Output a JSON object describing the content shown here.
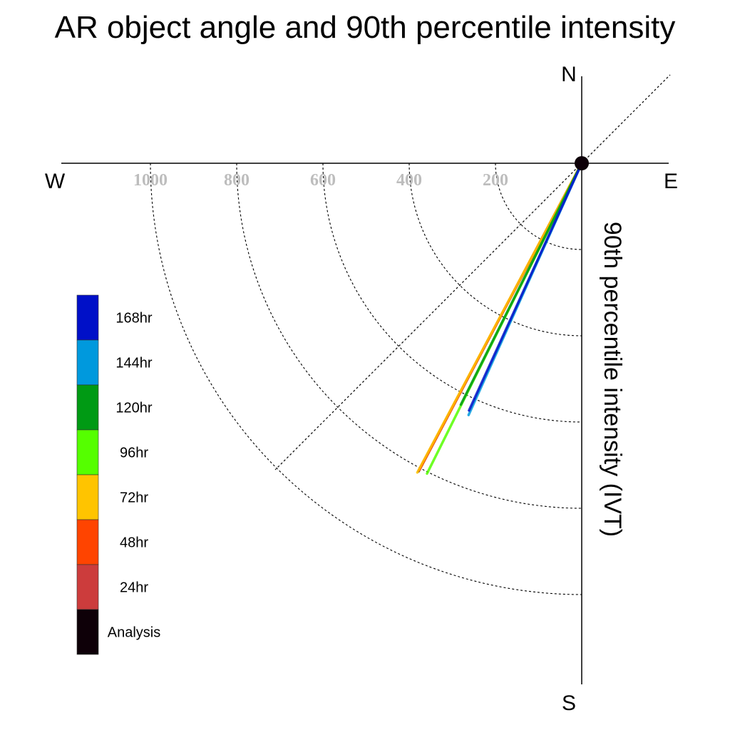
{
  "chart_data": {
    "type": "polar-vector",
    "title": "AR object angle and 90th percentile intensity",
    "ylabel": "90th percentile intensity (IVT)",
    "directions": {
      "north": "N",
      "south": "S",
      "east": "E",
      "west": "W"
    },
    "radial_ticks": [
      200,
      400,
      600,
      800,
      1000
    ],
    "radial_tick_labels": [
      "200",
      "400",
      "600",
      "800",
      "1000"
    ],
    "rlim": [
      0,
      1200
    ],
    "grid": true,
    "legend_position": "left",
    "legend": [
      {
        "label": "168hr",
        "color": "#0010c8"
      },
      {
        "label": "144hr",
        "color": "#0099dd"
      },
      {
        "label": "120hr",
        "color": "#009a14"
      },
      {
        "label": "96hr",
        "color": "#55ff00"
      },
      {
        "label": "72hr",
        "color": "#ffc400"
      },
      {
        "label": "48hr",
        "color": "#ff4400"
      },
      {
        "label": "24hr",
        "color": "#cc3c3c"
      },
      {
        "label": "Analysis",
        "color": "#0e0008"
      }
    ],
    "series": [
      {
        "name": "Analysis",
        "color": "#0e0008",
        "angle_deg": 207.9,
        "intensity": 808
      },
      {
        "name": "24hr",
        "color": "#cc3c3c",
        "angle_deg": 207.9,
        "intensity": 806
      },
      {
        "name": "48hr",
        "color": "#ff4400",
        "angle_deg": 207.9,
        "intensity": 804
      },
      {
        "name": "72hr",
        "color": "#ffc400",
        "angle_deg": 208.0,
        "intensity": 812
      },
      {
        "name": "96hr",
        "color": "#55ff00",
        "angle_deg": 206.5,
        "intensity": 804
      },
      {
        "name": "120hr",
        "color": "#009a14",
        "angle_deg": 206.6,
        "intensity": 626
      },
      {
        "name": "144hr",
        "color": "#0099dd",
        "angle_deg": 204.2,
        "intensity": 640
      },
      {
        "name": "168hr",
        "color": "#0010c8",
        "angle_deg": 204.5,
        "intensity": 630
      }
    ]
  }
}
